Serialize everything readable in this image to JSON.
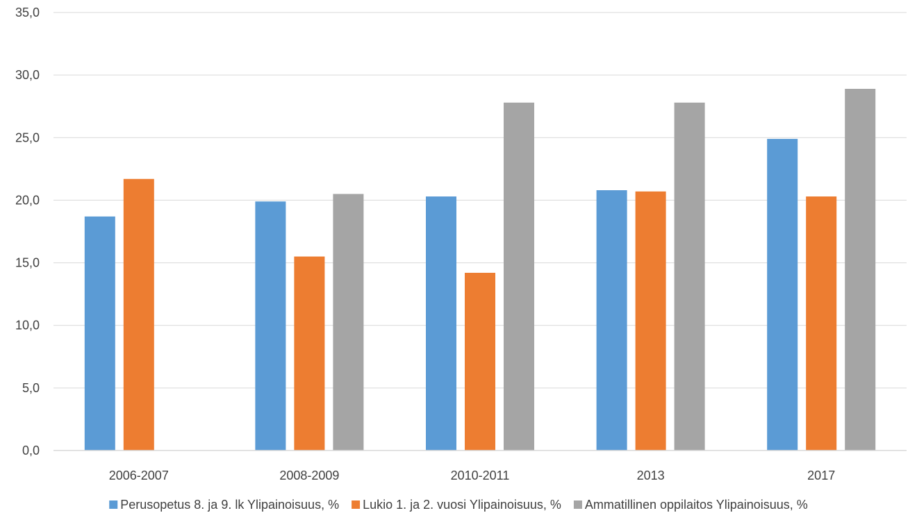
{
  "chart_data": {
    "type": "bar",
    "title": "",
    "xlabel": "",
    "ylabel": "",
    "categories": [
      "2006-2007",
      "2008-2009",
      "2010-2011",
      "2013",
      "2017"
    ],
    "series": [
      {
        "name": "Perusopetus 8. ja 9. lk Ylipainoisuus, %",
        "color": "#5B9BD5",
        "values": [
          18.7,
          19.9,
          20.3,
          20.8,
          24.9
        ]
      },
      {
        "name": "Lukio 1. ja 2. vuosi Ylipainoisuus, %",
        "color": "#ED7D31",
        "values": [
          21.7,
          15.5,
          14.2,
          20.7,
          20.3
        ]
      },
      {
        "name": "Ammatillinen oppilaitos Ylipainoisuus, %",
        "color": "#A5A5A5",
        "values": [
          null,
          20.5,
          27.8,
          27.8,
          28.9
        ]
      }
    ],
    "ylim": [
      0,
      35
    ],
    "yticks": [
      "0,0",
      "5,0",
      "10,0",
      "15,0",
      "20,0",
      "25,0",
      "30,0",
      "35,0"
    ],
    "grid": true,
    "legend_position": "bottom"
  }
}
